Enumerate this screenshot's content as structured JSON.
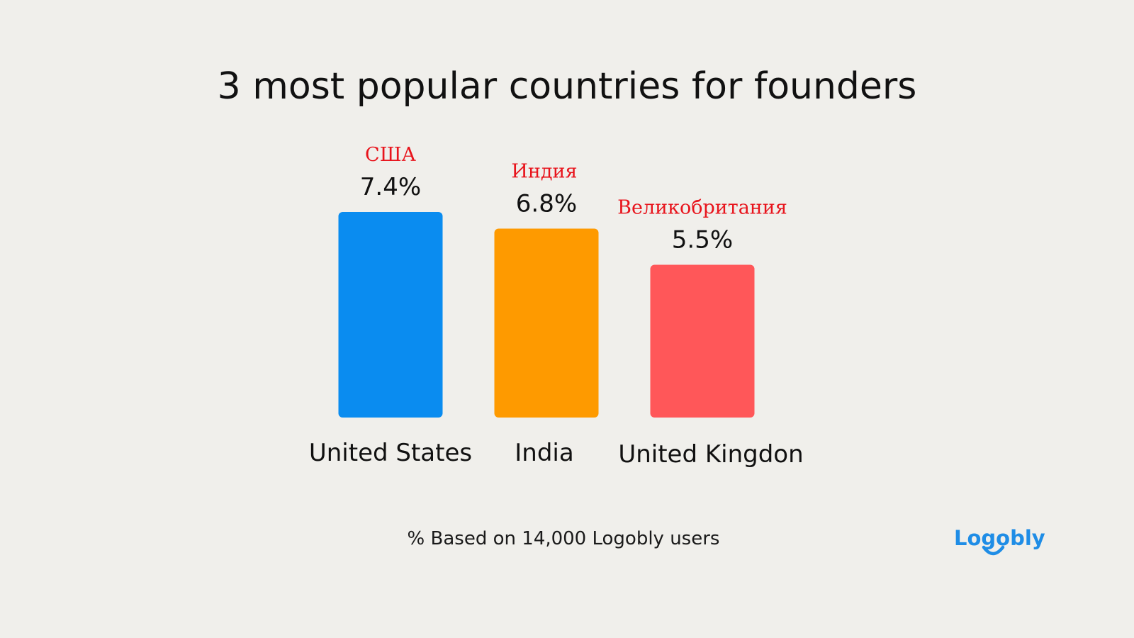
{
  "title": "3 most popular countries for founders",
  "footnote": "% Based on 14,000 Logobly users",
  "logo_text": "Logobly",
  "colors": {
    "background": "#f0efeb",
    "logo": "#1f8de6",
    "translation": "#e8141c"
  },
  "chart_data": {
    "type": "bar",
    "categories": [
      "United States",
      "India",
      "United Kingdon"
    ],
    "values": [
      7.4,
      6.8,
      5.5
    ],
    "value_labels": [
      "7.4%",
      "6.8%",
      "5.5%"
    ],
    "translations": [
      "США",
      "Индия",
      "Великобритания"
    ],
    "bar_colors": [
      "#0a8cf0",
      "#fe9a00",
      "#ff5759"
    ],
    "title": "3 most popular countries for founders",
    "xlabel": "",
    "ylabel": "",
    "grid": false
  }
}
